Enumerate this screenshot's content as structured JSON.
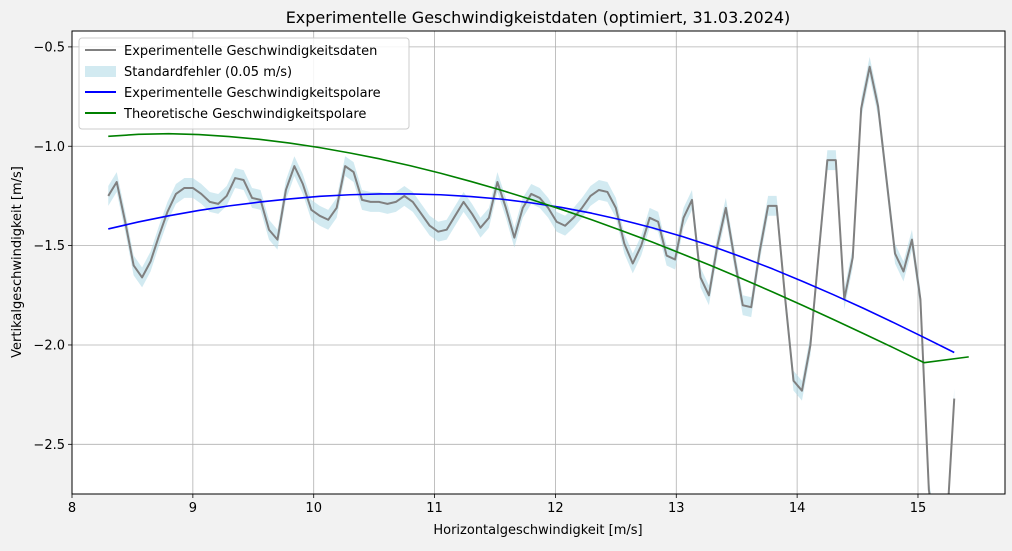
{
  "chart_data": {
    "type": "line",
    "title": "Experimentelle Geschwindigkeistdaten (optimiert, 31.03.2024)",
    "xlabel": "Horizontalgeschwindigkeit [m/s]",
    "ylabel": "Vertikalgeschwindigkeit [m/s]",
    "xlim": [
      8.0,
      15.72
    ],
    "ylim": [
      -2.75,
      -0.42
    ],
    "xticks": [
      8,
      9,
      10,
      11,
      12,
      13,
      14,
      15
    ],
    "yticks": [
      -2.5,
      -2.0,
      -1.5,
      -1.0,
      -0.5
    ],
    "xtick_labels": [
      "8",
      "9",
      "10",
      "11",
      "12",
      "13",
      "14",
      "15"
    ],
    "ytick_labels": [
      "−2.5",
      "−2.0",
      "−1.5",
      "−1.0",
      "−0.5"
    ],
    "grid": true,
    "legend_position": "top-left",
    "legend": [
      {
        "label": "Experimentelle Geschwindigkeitsdaten",
        "kind": "line",
        "color": "#808080"
      },
      {
        "label": "Standardfehler (0.05 m/s)",
        "kind": "band",
        "color": "#add8e6"
      },
      {
        "label": "Experimentelle Geschwindigkeitspolare",
        "kind": "line",
        "color": "#0000ff"
      },
      {
        "label": "Theoretische Geschwindigkeitspolare",
        "kind": "line",
        "color": "#008000"
      }
    ],
    "error_band": 0.05,
    "series": [
      {
        "name": "Experimentelle Geschwindigkeitsdaten",
        "color": "#808080",
        "x": [
          8.3,
          8.37,
          8.44,
          8.51,
          8.58,
          8.65,
          8.72,
          8.79,
          8.86,
          8.93,
          9.0,
          9.07,
          9.14,
          9.21,
          9.28,
          9.35,
          9.42,
          9.49,
          9.56,
          9.63,
          9.7,
          9.77,
          9.84,
          9.91,
          9.98,
          10.05,
          10.12,
          10.19,
          10.26,
          10.33,
          10.4,
          10.47,
          10.54,
          10.61,
          10.68,
          10.75,
          10.82,
          10.89,
          10.96,
          11.03,
          11.1,
          11.17,
          11.24,
          11.31,
          11.38,
          11.45,
          11.52,
          11.59,
          11.66,
          11.73,
          11.8,
          11.87,
          11.94,
          12.01,
          12.08,
          12.15,
          12.22,
          12.29,
          12.36,
          12.43,
          12.5,
          12.57,
          12.64,
          12.71,
          12.78,
          12.85,
          12.92,
          12.99,
          13.06,
          13.13,
          13.2,
          13.27,
          13.34,
          13.41,
          13.48,
          13.55,
          13.62,
          13.69,
          13.76,
          13.83,
          13.9,
          13.97,
          14.04,
          14.11,
          14.18,
          14.25,
          14.32,
          14.39,
          14.46,
          14.53,
          14.6,
          14.67,
          14.74,
          14.81,
          14.88,
          14.95,
          15.02,
          15.09,
          15.16,
          15.23,
          15.3
        ],
        "y": [
          -1.25,
          -1.18,
          -1.38,
          -1.6,
          -1.66,
          -1.58,
          -1.45,
          -1.33,
          -1.24,
          -1.21,
          -1.21,
          -1.24,
          -1.28,
          -1.29,
          -1.25,
          -1.16,
          -1.17,
          -1.26,
          -1.27,
          -1.42,
          -1.47,
          -1.22,
          -1.1,
          -1.19,
          -1.32,
          -1.35,
          -1.37,
          -1.31,
          -1.1,
          -1.13,
          -1.27,
          -1.28,
          -1.28,
          -1.29,
          -1.28,
          -1.25,
          -1.28,
          -1.34,
          -1.4,
          -1.43,
          -1.42,
          -1.35,
          -1.28,
          -1.34,
          -1.41,
          -1.36,
          -1.18,
          -1.31,
          -1.46,
          -1.31,
          -1.24,
          -1.26,
          -1.31,
          -1.38,
          -1.4,
          -1.36,
          -1.31,
          -1.25,
          -1.22,
          -1.23,
          -1.31,
          -1.49,
          -1.59,
          -1.5,
          -1.36,
          -1.38,
          -1.55,
          -1.57,
          -1.36,
          -1.27,
          -1.66,
          -1.75,
          -1.5,
          -1.31,
          -1.56,
          -1.8,
          -1.81,
          -1.53,
          -1.3,
          -1.3,
          -1.76,
          -2.18,
          -2.23,
          -2.0,
          -1.53,
          -1.07,
          -1.07,
          -1.77,
          -1.56,
          -0.81,
          -0.6,
          -0.8,
          -1.17,
          -1.54,
          -1.63,
          -1.47,
          -1.77,
          -2.73,
          -3.0,
          -3.0,
          -2.27
        ]
      },
      {
        "name": "Experimentelle Geschwindigkeitspolare",
        "color": "#0000ff",
        "x": [
          8.3,
          8.55,
          8.8,
          9.05,
          9.3,
          9.55,
          9.8,
          10.05,
          10.3,
          10.55,
          10.8,
          11.05,
          11.3,
          11.55,
          11.8,
          12.05,
          12.3,
          12.55,
          12.8,
          13.05,
          13.3,
          13.55,
          13.8,
          14.05,
          14.3,
          14.55,
          14.8,
          15.05,
          15.3
        ],
        "y": [
          -1.416,
          -1.381,
          -1.35,
          -1.323,
          -1.3,
          -1.281,
          -1.265,
          -1.252,
          -1.244,
          -1.24,
          -1.24,
          -1.244,
          -1.253,
          -1.266,
          -1.285,
          -1.308,
          -1.337,
          -1.371,
          -1.41,
          -1.454,
          -1.504,
          -1.559,
          -1.618,
          -1.681,
          -1.747,
          -1.816,
          -1.888,
          -1.962,
          -2.038
        ]
      },
      {
        "name": "Theoretische Geschwindigkeitspolare",
        "color": "#008000",
        "x": [
          8.3,
          8.55,
          8.8,
          9.05,
          9.3,
          9.55,
          9.8,
          10.05,
          10.3,
          10.55,
          10.8,
          11.05,
          11.3,
          11.55,
          11.8,
          12.05,
          12.3,
          12.55,
          12.8,
          13.05,
          13.3,
          13.55,
          13.8,
          14.05,
          14.3,
          14.55,
          14.8,
          15.05,
          15.42
        ],
        "y": [
          -0.95,
          -0.94,
          -0.937,
          -0.941,
          -0.951,
          -0.965,
          -0.984,
          -1.007,
          -1.034,
          -1.064,
          -1.098,
          -1.136,
          -1.177,
          -1.221,
          -1.268,
          -1.318,
          -1.37,
          -1.425,
          -1.482,
          -1.542,
          -1.604,
          -1.668,
          -1.734,
          -1.802,
          -1.872,
          -1.943,
          -2.015,
          -2.089,
          -2.06
        ]
      }
    ]
  }
}
